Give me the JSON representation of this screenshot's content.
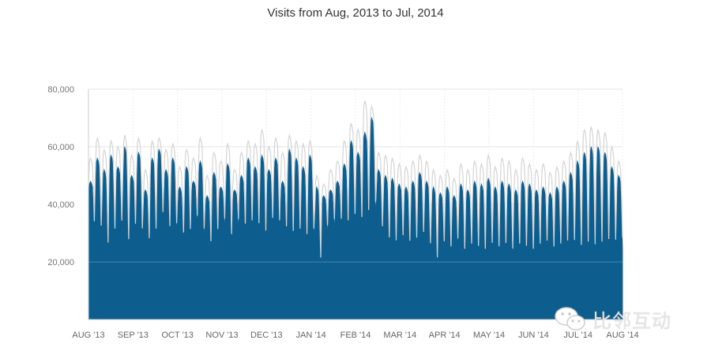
{
  "chart_data": {
    "type": "area",
    "title": "Visits from Aug, 2013 to Jul, 2014",
    "xlabel": "",
    "ylabel": "",
    "ylim": [
      0,
      80000
    ],
    "y_ticks": [
      "20,000",
      "40,000",
      "60,000",
      "80,000"
    ],
    "y_tick_values": [
      20000,
      40000,
      60000,
      80000
    ],
    "x_ticks": [
      "AUG '13",
      "SEP '13",
      "OCT '13",
      "NOV '13",
      "DEC '13",
      "JAN '14",
      "FEB '14",
      "MAR '14",
      "APR '14",
      "MAY '14",
      "JUN '14",
      "JUL '14",
      "AUG '14"
    ],
    "grid": true,
    "legend": "none",
    "series": [
      {
        "color": "#0d5e8f",
        "weekly_peaks": [
          48000,
          56000,
          52000,
          57000,
          53000,
          60000,
          50000,
          58000,
          45000,
          56000,
          59000,
          52000,
          56000,
          46000,
          53000,
          48000,
          55000,
          43000,
          51000,
          46000,
          54000,
          45000,
          50000,
          56000,
          53000,
          57000,
          52000,
          56000,
          48000,
          59000,
          56000,
          53000,
          57000,
          46000,
          43000,
          45000,
          48000,
          54000,
          62000,
          58000,
          65000,
          70000,
          52000,
          50000,
          49000,
          47000,
          46000,
          48000,
          51000,
          48000,
          46000,
          44000,
          46000,
          43000,
          47000,
          45000,
          48000,
          47000,
          49000,
          46000,
          48000,
          47000,
          45000,
          48000,
          47000,
          45000,
          46000,
          44000,
          46000,
          48000,
          51000,
          55000,
          58000,
          60000,
          60000,
          58000,
          53000,
          50000
        ],
        "weekly_troughs": [
          29000,
          27000,
          21000,
          26000,
          29000,
          22000,
          28000,
          26000,
          23000,
          26000,
          32000,
          27000,
          28000,
          25000,
          26000,
          31000,
          26000,
          22000,
          26000,
          30000,
          24000,
          30000,
          28000,
          29000,
          28000,
          25000,
          30000,
          29000,
          27000,
          25000,
          26000,
          24000,
          26000,
          16000,
          28000,
          30000,
          30000,
          29000,
          31000,
          30000,
          32000,
          35000,
          27000,
          23000,
          22000,
          24000,
          22000,
          23000,
          25000,
          21000,
          16000,
          22000,
          20000,
          23000,
          19000,
          21000,
          20000,
          19000,
          21000,
          20000,
          21000,
          19000,
          21000,
          20000,
          19000,
          21000,
          22000,
          20000,
          21000,
          22000,
          22000,
          20000,
          21000,
          20000,
          21000,
          22000,
          22000,
          23000
        ]
      },
      {
        "color": "#d4d4d4",
        "weekly_peaks": [
          56000,
          63000,
          59000,
          62000,
          60000,
          64000,
          57000,
          63000,
          52000,
          62000,
          63000,
          59000,
          61000,
          53000,
          59000,
          56000,
          63000,
          50000,
          58000,
          55000,
          61000,
          52000,
          58000,
          62000,
          61000,
          66000,
          60000,
          63000,
          58000,
          64000,
          62000,
          61000,
          62000,
          50000,
          47000,
          52000,
          55000,
          62000,
          68000,
          66000,
          76000,
          74000,
          58000,
          57000,
          56000,
          54000,
          53000,
          55000,
          57000,
          55000,
          52000,
          50000,
          52000,
          49000,
          54000,
          52000,
          55000,
          54000,
          57000,
          53000,
          56000,
          55000,
          52000,
          56000,
          54000,
          52000,
          54000,
          51000,
          53000,
          55000,
          58000,
          62000,
          66000,
          67000,
          66000,
          65000,
          60000,
          55000
        ]
      }
    ]
  },
  "watermark": {
    "text": "比邻互动",
    "icon": "wechat-icon"
  }
}
